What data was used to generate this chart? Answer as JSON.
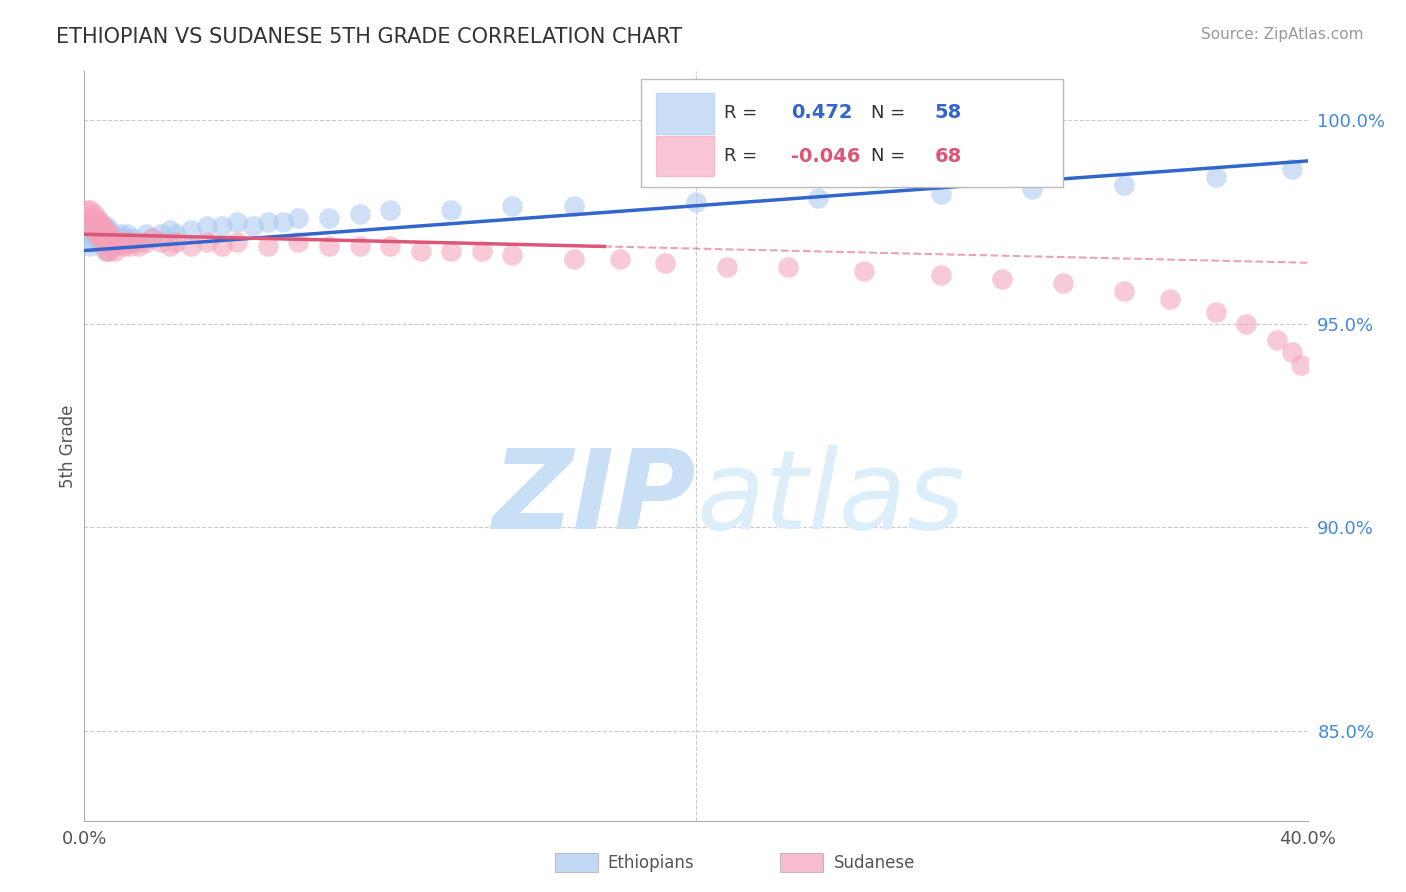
{
  "title": "ETHIOPIAN VS SUDANESE 5TH GRADE CORRELATION CHART",
  "source": "Source: ZipAtlas.com",
  "ylabel": "5th Grade",
  "ethiopians_R": 0.472,
  "ethiopians_N": 58,
  "sudanese_R": -0.046,
  "sudanese_N": 68,
  "ethiopian_color": "#a8c8f0",
  "sudanese_color": "#f4a0b8",
  "ethiopian_line_color": "#3366cc",
  "sudanese_line_color": "#dd5577",
  "bg_color": "#ffffff",
  "grid_color": "#cccccc",
  "xlim": [
    0.0,
    0.4
  ],
  "ylim": [
    0.828,
    1.012
  ],
  "yticks": [
    0.85,
    0.9,
    0.95,
    1.0
  ],
  "ytick_labels": [
    "85.0%",
    "90.0%",
    "95.0%",
    "100.0%"
  ],
  "ethiopians_x": [
    0.001,
    0.002,
    0.002,
    0.003,
    0.003,
    0.003,
    0.004,
    0.004,
    0.004,
    0.005,
    0.005,
    0.005,
    0.006,
    0.006,
    0.006,
    0.007,
    0.007,
    0.007,
    0.008,
    0.008,
    0.008,
    0.009,
    0.009,
    0.01,
    0.01,
    0.011,
    0.012,
    0.013,
    0.014,
    0.015,
    0.016,
    0.018,
    0.02,
    0.022,
    0.025,
    0.028,
    0.03,
    0.035,
    0.04,
    0.045,
    0.05,
    0.055,
    0.06,
    0.065,
    0.07,
    0.08,
    0.09,
    0.1,
    0.12,
    0.14,
    0.16,
    0.2,
    0.24,
    0.28,
    0.31,
    0.34,
    0.37,
    0.395
  ],
  "ethiopians_y": [
    0.972,
    0.975,
    0.969,
    0.975,
    0.972,
    0.97,
    0.973,
    0.971,
    0.975,
    0.974,
    0.972,
    0.97,
    0.974,
    0.972,
    0.97,
    0.974,
    0.972,
    0.968,
    0.973,
    0.971,
    0.969,
    0.972,
    0.97,
    0.971,
    0.969,
    0.97,
    0.972,
    0.971,
    0.972,
    0.97,
    0.971,
    0.97,
    0.972,
    0.971,
    0.972,
    0.973,
    0.972,
    0.973,
    0.974,
    0.974,
    0.975,
    0.974,
    0.975,
    0.975,
    0.976,
    0.976,
    0.977,
    0.978,
    0.978,
    0.979,
    0.979,
    0.98,
    0.981,
    0.982,
    0.983,
    0.984,
    0.986,
    0.988
  ],
  "sudanese_x": [
    0.001,
    0.001,
    0.002,
    0.002,
    0.002,
    0.003,
    0.003,
    0.003,
    0.004,
    0.004,
    0.004,
    0.005,
    0.005,
    0.005,
    0.006,
    0.006,
    0.006,
    0.007,
    0.007,
    0.007,
    0.008,
    0.008,
    0.008,
    0.009,
    0.009,
    0.01,
    0.01,
    0.011,
    0.012,
    0.013,
    0.014,
    0.015,
    0.016,
    0.018,
    0.02,
    0.022,
    0.025,
    0.028,
    0.03,
    0.035,
    0.04,
    0.045,
    0.05,
    0.06,
    0.07,
    0.08,
    0.09,
    0.1,
    0.11,
    0.12,
    0.13,
    0.14,
    0.16,
    0.175,
    0.19,
    0.21,
    0.23,
    0.255,
    0.28,
    0.3,
    0.32,
    0.34,
    0.355,
    0.37,
    0.38,
    0.39,
    0.395,
    0.398
  ],
  "sudanese_y": [
    0.978,
    0.975,
    0.978,
    0.976,
    0.974,
    0.977,
    0.975,
    0.973,
    0.976,
    0.974,
    0.972,
    0.975,
    0.973,
    0.971,
    0.974,
    0.972,
    0.97,
    0.973,
    0.971,
    0.968,
    0.972,
    0.97,
    0.968,
    0.971,
    0.969,
    0.97,
    0.968,
    0.97,
    0.97,
    0.969,
    0.97,
    0.969,
    0.97,
    0.969,
    0.97,
    0.971,
    0.97,
    0.969,
    0.97,
    0.969,
    0.97,
    0.969,
    0.97,
    0.969,
    0.97,
    0.969,
    0.969,
    0.969,
    0.968,
    0.968,
    0.968,
    0.967,
    0.966,
    0.966,
    0.965,
    0.964,
    0.964,
    0.963,
    0.962,
    0.961,
    0.96,
    0.958,
    0.956,
    0.953,
    0.95,
    0.946,
    0.943,
    0.94
  ],
  "legend_R_eth_color": "#3366cc",
  "legend_R_sud_color": "#dd5577",
  "legend_N_color": "#3366cc"
}
